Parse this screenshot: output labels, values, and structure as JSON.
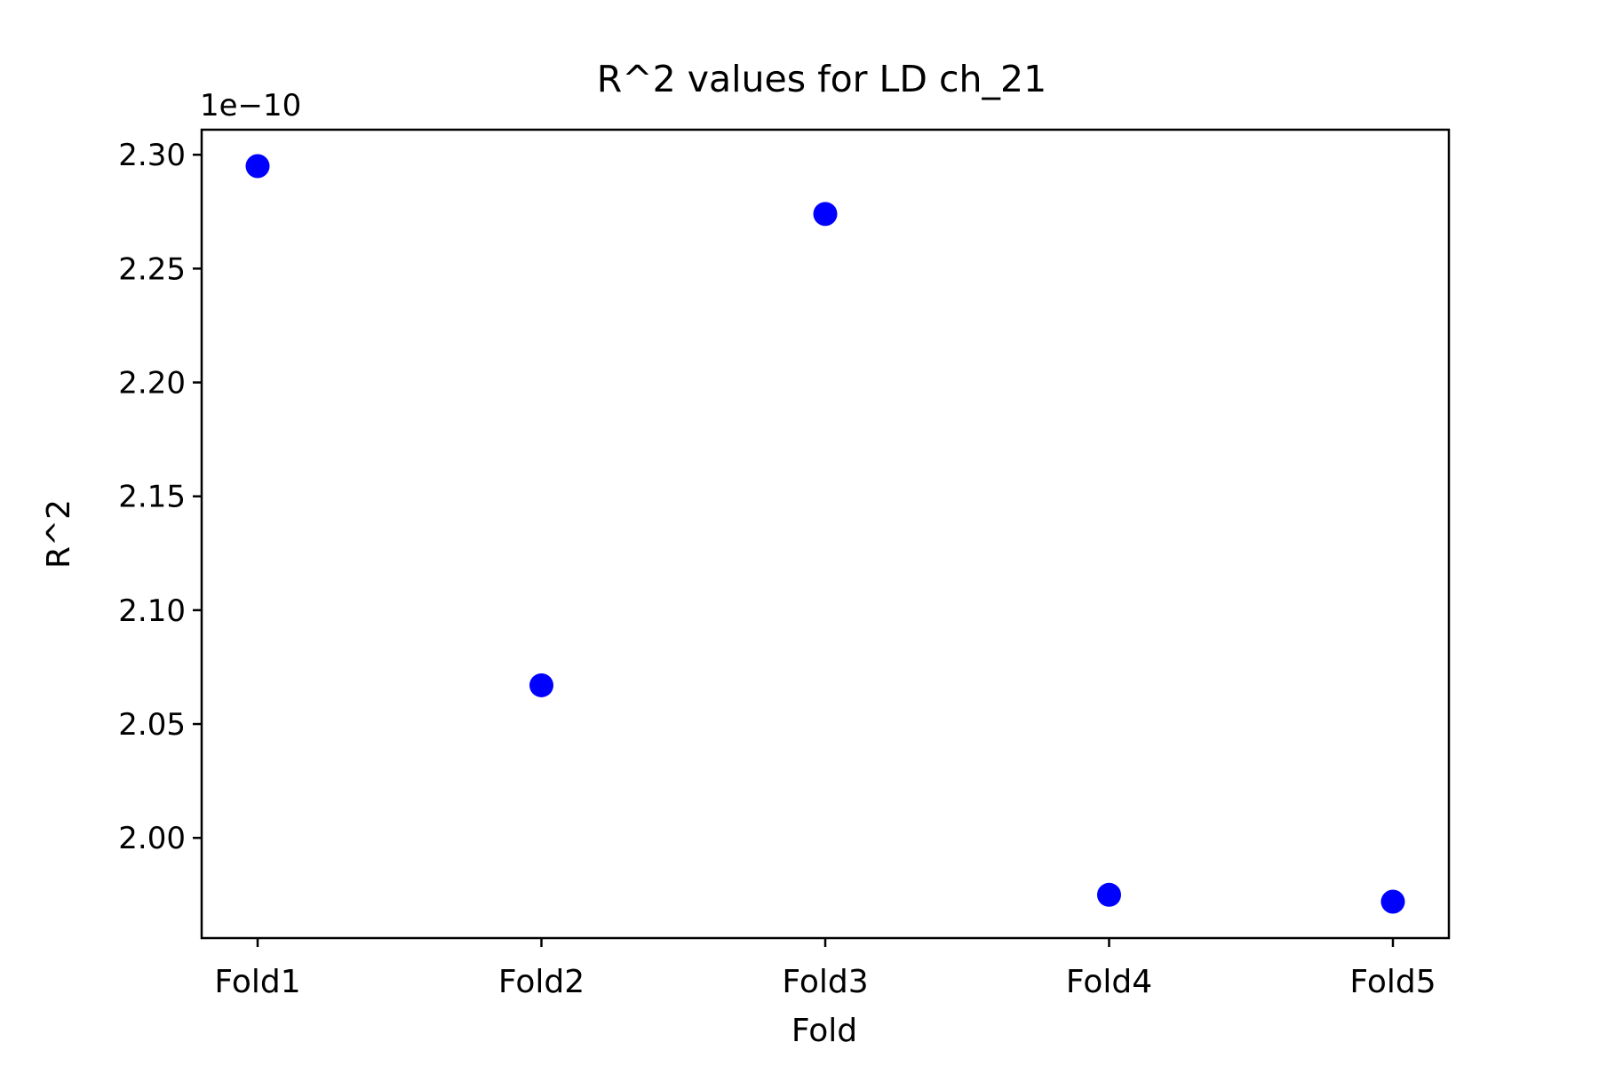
{
  "chart_data": {
    "type": "scatter",
    "title": "R^2 values for LD ch_21",
    "xlabel": "Fold",
    "ylabel": "R^2",
    "offset_label": "1e−10",
    "categories": [
      "Fold1",
      "Fold2",
      "Fold3",
      "Fold4",
      "Fold5"
    ],
    "values": [
      2.295,
      2.067,
      2.274,
      1.975,
      1.972
    ],
    "value_scale": 1e-10,
    "ylim": [
      1.956,
      2.311
    ],
    "yticks": [
      2.0,
      2.05,
      2.1,
      2.15,
      2.2,
      2.25,
      2.3
    ],
    "ytick_labels": [
      "2.00",
      "2.05",
      "2.10",
      "2.15",
      "2.20",
      "2.25",
      "2.30"
    ],
    "grid": false,
    "legend": "none",
    "marker_color": "#0000ff"
  }
}
